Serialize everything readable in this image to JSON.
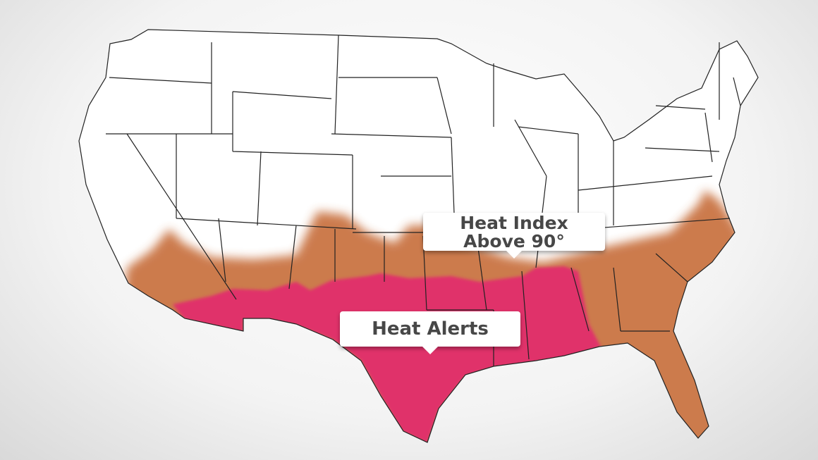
{
  "map": {
    "region": "Contiguous United States",
    "colors": {
      "heat_alerts": "#e0306a",
      "heat_index_above_90": "#c8703e",
      "land": "#ffffff",
      "borders": "#222222"
    },
    "labels": [
      {
        "id": "heat-index",
        "line1": "Heat Index",
        "line2": "Above 90°"
      },
      {
        "id": "heat-alerts",
        "text": "Heat Alerts"
      }
    ]
  }
}
